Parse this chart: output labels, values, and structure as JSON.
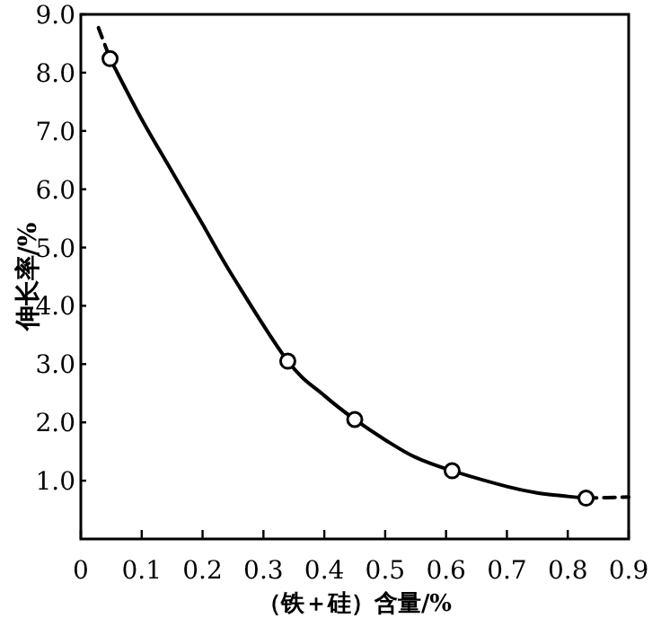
{
  "chart_data": {
    "type": "line",
    "xlabel": "（铁＋硅）含量/%",
    "ylabel": "伸长率/%",
    "xlim": [
      0,
      0.9
    ],
    "ylim": [
      0,
      9
    ],
    "xticks": [
      0,
      0.1,
      0.2,
      0.3,
      0.4,
      0.5,
      0.6,
      0.7,
      0.8,
      0.9
    ],
    "yticks": [
      {
        "value": 1,
        "label": "1.0"
      },
      {
        "value": 2,
        "label": "2.0"
      },
      {
        "value": 3,
        "label": "3.0"
      },
      {
        "value": 4,
        "label": "4.0"
      },
      {
        "value": 5,
        "label": "5.0"
      },
      {
        "value": 6,
        "label": "6.0"
      },
      {
        "value": 7,
        "label": "7.0"
      },
      {
        "value": 8,
        "label": "8.0"
      },
      {
        "value": 9,
        "label": "9.0"
      }
    ],
    "grid": false,
    "series": [
      {
        "line_style": "solid",
        "color": "#000000",
        "x": [
          0.048,
          0.1,
          0.15,
          0.2,
          0.25,
          0.34,
          0.4,
          0.45,
          0.5,
          0.55,
          0.61,
          0.7,
          0.75,
          0.8,
          0.83
        ],
        "values": [
          8.24,
          7.2,
          6.3,
          5.4,
          4.5,
          3.05,
          2.46,
          2.05,
          1.7,
          1.4,
          1.17,
          0.9,
          0.79,
          0.73,
          0.7
        ]
      },
      {
        "line_style": "dashed",
        "color": "#000000",
        "x": [
          0.029,
          0.048
        ],
        "values": [
          8.77,
          8.24
        ]
      },
      {
        "line_style": "dashed",
        "color": "#000000",
        "x": [
          0.83,
          0.9
        ],
        "values": [
          0.7,
          0.72
        ]
      },
      {
        "type": "scatter",
        "marker": "circle",
        "color": "#000000",
        "x": [
          0.048,
          0.34,
          0.45,
          0.61,
          0.83
        ],
        "values": [
          8.24,
          3.05,
          2.05,
          1.17,
          0.7
        ]
      }
    ]
  }
}
